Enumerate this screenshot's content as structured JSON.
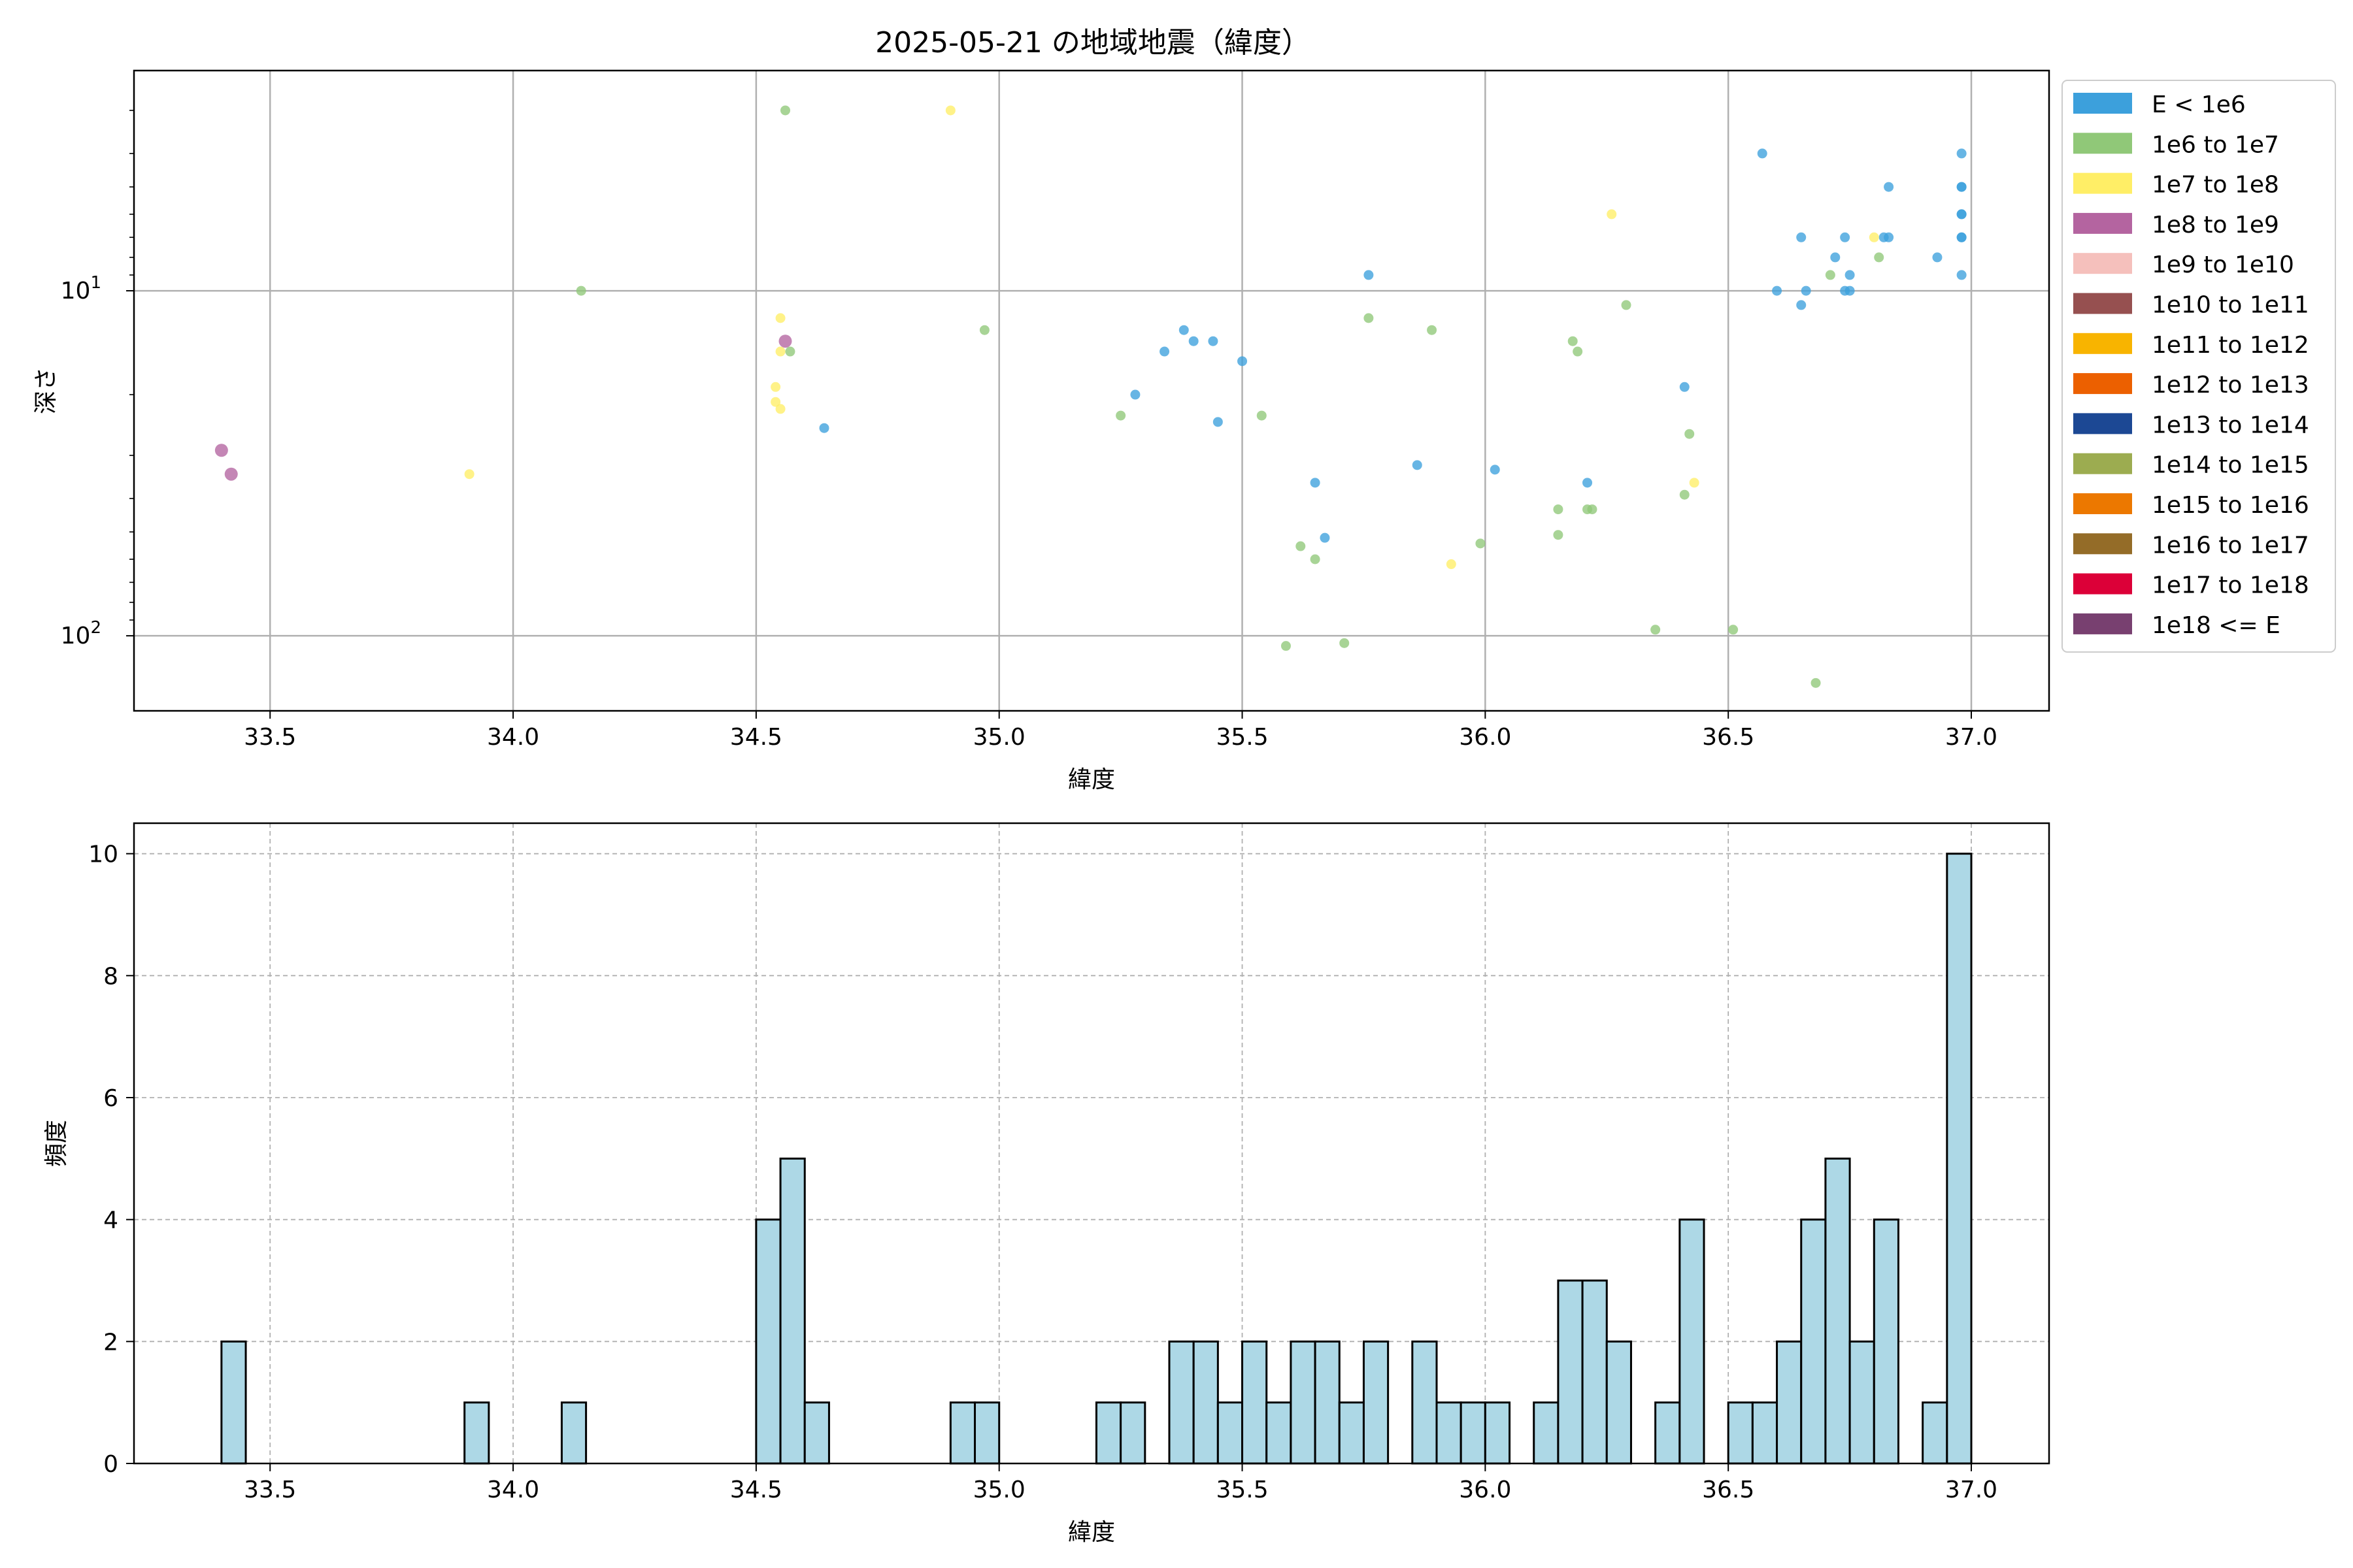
{
  "title": "2025-05-21 の地域地震（緯度）",
  "colors": {
    "grid": "#b0b0b0",
    "hist_fill": "#add8e6",
    "hist_edge": "#000000"
  },
  "scatter": {
    "xlabel": "緯度",
    "ylabel": "深さ",
    "xticks": [
      "33.5",
      "34.0",
      "34.5",
      "35.0",
      "35.5",
      "36.0",
      "36.5",
      "37.0"
    ],
    "yticks": [
      {
        "base": "10",
        "exp": "1"
      },
      {
        "base": "10",
        "exp": "2"
      }
    ],
    "legend": [
      {
        "label": "E < 1e6",
        "color": "#3ca0dc"
      },
      {
        "label": "1e6 to 1e7",
        "color": "#90c878"
      },
      {
        "label": "1e7 to 1e8",
        "color": "#ffee66"
      },
      {
        "label": "1e8 to 1e9",
        "color": "#b464a0"
      },
      {
        "label": "1e9 to 1e10",
        "color": "#f5c0bc"
      },
      {
        "label": "1e10 to 1e11",
        "color": "#965050"
      },
      {
        "label": "1e11 to 1e12",
        "color": "#f8b400"
      },
      {
        "label": "1e12 to 1e13",
        "color": "#ec6000"
      },
      {
        "label": "1e13 to 1e14",
        "color": "#1c4894"
      },
      {
        "label": "1e14 to 1e15",
        "color": "#9cac50"
      },
      {
        "label": "1e15 to 1e16",
        "color": "#ec7800"
      },
      {
        "label": "1e16 to 1e17",
        "color": "#946c28"
      },
      {
        "label": "1e17 to 1e18",
        "color": "#dc0038"
      },
      {
        "label": "1e18 <= E",
        "color": "#784070"
      }
    ]
  },
  "histogram": {
    "xlabel": "緯度",
    "ylabel": "頻度",
    "xticks": [
      "33.5",
      "34.0",
      "34.5",
      "35.0",
      "35.5",
      "36.0",
      "36.5",
      "37.0"
    ],
    "yticks": [
      "0",
      "2",
      "4",
      "6",
      "8",
      "10"
    ]
  },
  "chart_data": [
    {
      "type": "scatter",
      "title": "2025-05-21 の地域地震（緯度）",
      "xlabel": "緯度",
      "ylabel": "深さ",
      "xlim": [
        33.22,
        37.16
      ],
      "ylim": [
        165,
        2.3
      ],
      "yscale": "log",
      "y_inverted": true,
      "grid": true,
      "legend_position": "outside right",
      "series": [
        {
          "name": "E < 1e6",
          "points": [
            [
              34.64,
              25
            ],
            [
              35.28,
              20
            ],
            [
              35.34,
              15
            ],
            [
              35.38,
              13
            ],
            [
              35.4,
              14
            ],
            [
              35.44,
              14
            ],
            [
              35.45,
              24
            ],
            [
              35.5,
              16
            ],
            [
              35.65,
              36
            ],
            [
              35.67,
              52
            ],
            [
              35.76,
              9
            ],
            [
              35.86,
              32
            ],
            [
              36.02,
              33
            ],
            [
              36.21,
              36
            ],
            [
              36.41,
              19
            ],
            [
              36.57,
              4
            ],
            [
              36.6,
              10
            ],
            [
              36.65,
              7
            ],
            [
              36.65,
              11
            ],
            [
              36.66,
              10
            ],
            [
              36.72,
              8
            ],
            [
              36.74,
              7
            ],
            [
              36.74,
              10
            ],
            [
              36.75,
              10
            ],
            [
              36.75,
              9
            ],
            [
              36.82,
              7
            ],
            [
              36.83,
              5
            ],
            [
              36.83,
              7
            ],
            [
              36.93,
              8
            ],
            [
              36.98,
              4
            ],
            [
              36.98,
              5
            ],
            [
              36.98,
              5
            ],
            [
              36.98,
              6
            ],
            [
              36.98,
              6
            ],
            [
              36.98,
              7
            ],
            [
              36.98,
              7
            ],
            [
              36.98,
              9
            ]
          ]
        },
        {
          "name": "1e6 to 1e7",
          "points": [
            [
              34.14,
              10
            ],
            [
              34.56,
              3
            ],
            [
              34.57,
              15
            ],
            [
              34.97,
              13
            ],
            [
              35.25,
              23
            ],
            [
              35.54,
              23
            ],
            [
              35.59,
              107
            ],
            [
              35.62,
              55
            ],
            [
              35.65,
              60
            ],
            [
              35.71,
              105
            ],
            [
              35.76,
              12
            ],
            [
              35.89,
              13
            ],
            [
              35.99,
              54
            ],
            [
              36.15,
              43
            ],
            [
              36.15,
              51
            ],
            [
              36.18,
              14
            ],
            [
              36.19,
              15
            ],
            [
              36.21,
              43
            ],
            [
              36.22,
              43
            ],
            [
              36.29,
              11
            ],
            [
              36.35,
              96
            ],
            [
              36.41,
              39
            ],
            [
              36.42,
              26
            ],
            [
              36.51,
              96
            ],
            [
              36.68,
              137
            ],
            [
              36.71,
              9
            ],
            [
              36.81,
              8
            ]
          ]
        },
        {
          "name": "1e7 to 1e8",
          "points": [
            [
              33.91,
              34
            ],
            [
              34.54,
              19
            ],
            [
              34.54,
              21
            ],
            [
              34.55,
              12
            ],
            [
              34.55,
              15
            ],
            [
              34.55,
              22
            ],
            [
              34.9,
              3
            ],
            [
              35.93,
              62
            ],
            [
              36.26,
              6
            ],
            [
              36.43,
              36
            ],
            [
              36.8,
              7
            ]
          ]
        },
        {
          "name": "1e8 to 1e9",
          "points": [
            [
              33.4,
              29
            ],
            [
              33.42,
              34
            ],
            [
              34.56,
              14
            ]
          ]
        }
      ]
    },
    {
      "type": "bar",
      "title": "",
      "xlabel": "緯度",
      "ylabel": "頻度",
      "xlim": [
        33.22,
        37.16
      ],
      "ylim": [
        0,
        10.5
      ],
      "grid": true,
      "bin_start": 33.4,
      "bin_width": 0.05,
      "counts": [
        2,
        0,
        0,
        0,
        0,
        0,
        0,
        0,
        0,
        0,
        1,
        0,
        0,
        0,
        1,
        0,
        0,
        0,
        0,
        0,
        0,
        0,
        4,
        5,
        1,
        0,
        0,
        0,
        0,
        0,
        1,
        1,
        0,
        0,
        0,
        0,
        1,
        1,
        0,
        2,
        2,
        1,
        2,
        1,
        2,
        2,
        1,
        2,
        0,
        2,
        1,
        1,
        1,
        0,
        1,
        3,
        3,
        2,
        0,
        1,
        4,
        0,
        1,
        1,
        2,
        4,
        5,
        2,
        4,
        0,
        1,
        10
      ]
    }
  ]
}
